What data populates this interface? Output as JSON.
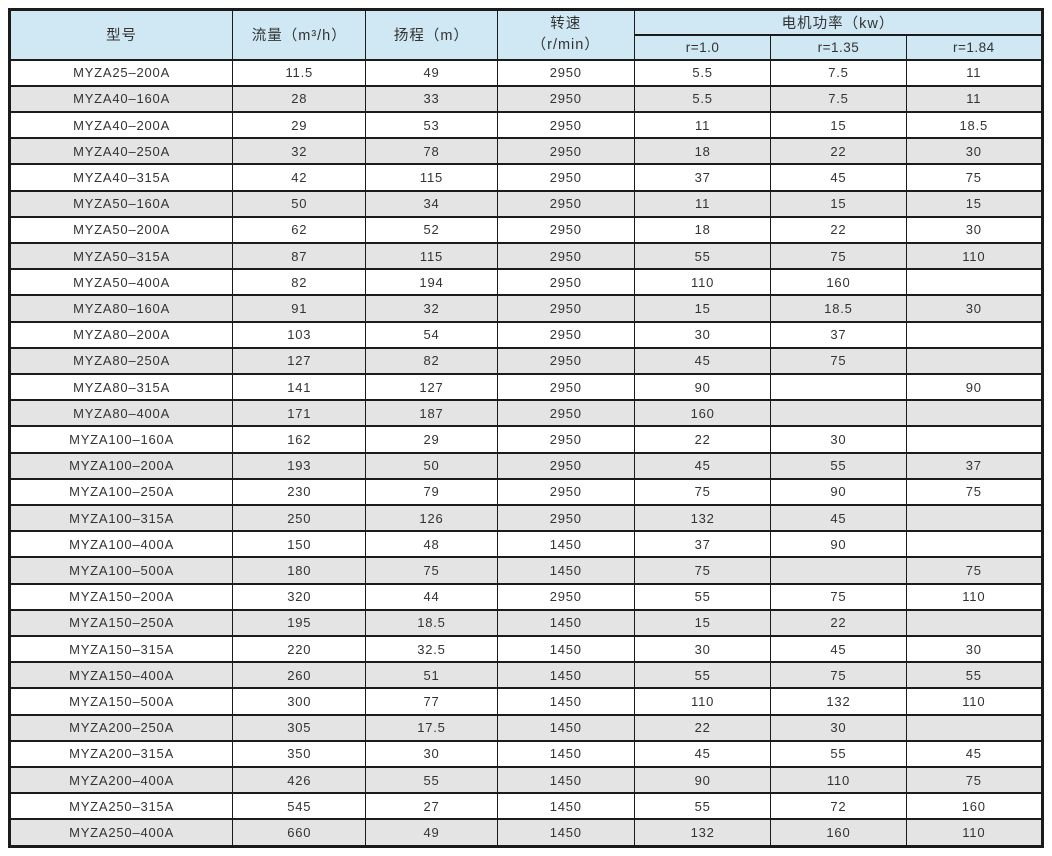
{
  "colors": {
    "header_bg": "#cfe8f4",
    "row_alt_bg": "#e4e4e4",
    "row_bg": "#ffffff",
    "border": "#1b1b1b",
    "text": "#333333"
  },
  "table": {
    "columns": {
      "model": "型号",
      "flow": "流量（m³/h）",
      "head": "扬程（m）",
      "speed_line1": "转速",
      "speed_line2": "（r/min）",
      "power_group": "电机功率（kw）",
      "power_ratios": [
        "r=1.0",
        "r=1.35",
        "r=1.84"
      ]
    },
    "rows": [
      [
        "MYZA25–200A",
        "11.5",
        "49",
        "2950",
        "5.5",
        "7.5",
        "11"
      ],
      [
        "MYZA40–160A",
        "28",
        "33",
        "2950",
        "5.5",
        "7.5",
        "11"
      ],
      [
        "MYZA40–200A",
        "29",
        "53",
        "2950",
        "11",
        "15",
        "18.5"
      ],
      [
        "MYZA40–250A",
        "32",
        "78",
        "2950",
        "18",
        "22",
        "30"
      ],
      [
        "MYZA40–315A",
        "42",
        "115",
        "2950",
        "37",
        "45",
        "75"
      ],
      [
        "MYZA50–160A",
        "50",
        "34",
        "2950",
        "11",
        "15",
        "15"
      ],
      [
        "MYZA50–200A",
        "62",
        "52",
        "2950",
        "18",
        "22",
        "30"
      ],
      [
        "MYZA50–315A",
        "87",
        "115",
        "2950",
        "55",
        "75",
        "110"
      ],
      [
        "MYZA50–400A",
        "82",
        "194",
        "2950",
        "110",
        "160",
        ""
      ],
      [
        "MYZA80–160A",
        "91",
        "32",
        "2950",
        "15",
        "18.5",
        "30"
      ],
      [
        "MYZA80–200A",
        "103",
        "54",
        "2950",
        "30",
        "37",
        ""
      ],
      [
        "MYZA80–250A",
        "127",
        "82",
        "2950",
        "45",
        "75",
        ""
      ],
      [
        "MYZA80–315A",
        "141",
        "127",
        "2950",
        "90",
        "",
        "90"
      ],
      [
        "MYZA80–400A",
        "171",
        "187",
        "2950",
        "160",
        "",
        ""
      ],
      [
        "MYZA100–160A",
        "162",
        "29",
        "2950",
        "22",
        "30",
        ""
      ],
      [
        "MYZA100–200A",
        "193",
        "50",
        "2950",
        "45",
        "55",
        "37"
      ],
      [
        "MYZA100–250A",
        "230",
        "79",
        "2950",
        "75",
        "90",
        "75"
      ],
      [
        "MYZA100–315A",
        "250",
        "126",
        "2950",
        "132",
        "45",
        ""
      ],
      [
        "MYZA100–400A",
        "150",
        "48",
        "1450",
        "37",
        "90",
        ""
      ],
      [
        "MYZA100–500A",
        "180",
        "75",
        "1450",
        "75",
        "",
        "75"
      ],
      [
        "MYZA150–200A",
        "320",
        "44",
        "2950",
        "55",
        "75",
        "110"
      ],
      [
        "MYZA150–250A",
        "195",
        "18.5",
        "1450",
        "15",
        "22",
        ""
      ],
      [
        "MYZA150–315A",
        "220",
        "32.5",
        "1450",
        "30",
        "45",
        "30"
      ],
      [
        "MYZA150–400A",
        "260",
        "51",
        "1450",
        "55",
        "75",
        "55"
      ],
      [
        "MYZA150–500A",
        "300",
        "77",
        "1450",
        "110",
        "132",
        "110"
      ],
      [
        "MYZA200–250A",
        "305",
        "17.5",
        "1450",
        "22",
        "30",
        ""
      ],
      [
        "MYZA200–315A",
        "350",
        "30",
        "1450",
        "45",
        "55",
        "45"
      ],
      [
        "MYZA200–400A",
        "426",
        "55",
        "1450",
        "90",
        "110",
        "75"
      ],
      [
        "MYZA250–315A",
        "545",
        "27",
        "1450",
        "55",
        "72",
        "160"
      ],
      [
        "MYZA250–400A",
        "660",
        "49",
        "1450",
        "132",
        "160",
        "110"
      ]
    ]
  }
}
